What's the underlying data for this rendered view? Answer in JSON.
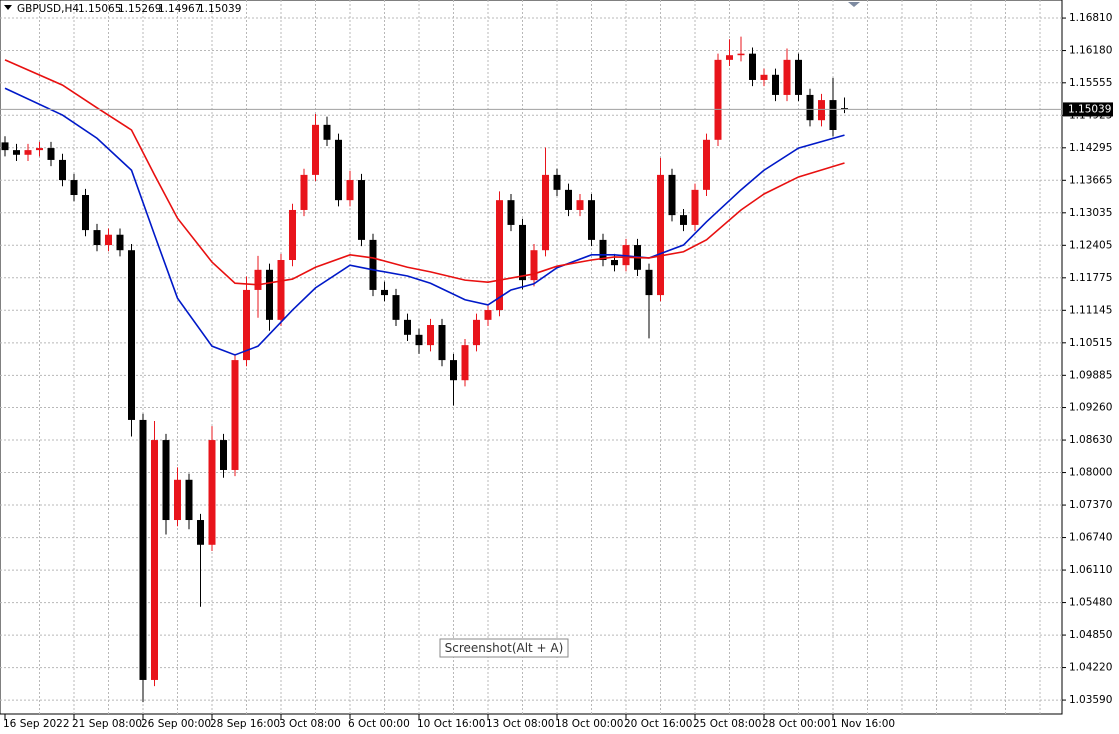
{
  "header": {
    "symbol": "GBPUSD,H4",
    "ohlc": [
      1.15065,
      1.15269,
      1.14967,
      1.15039
    ]
  },
  "tooltip": "Screenshot(Alt + A)",
  "chart_data": {
    "type": "candlestick",
    "categories": [
      "16 Sep 2022",
      null,
      null,
      null,
      null,
      null,
      "21 Sep 08:00",
      null,
      null,
      null,
      null,
      null,
      "26 Sep 00:00",
      null,
      null,
      null,
      null,
      null,
      "28 Sep 16:00",
      null,
      null,
      null,
      null,
      null,
      "3 Oct 08:00",
      null,
      null,
      null,
      null,
      null,
      "6 Oct 00:00",
      null,
      null,
      null,
      null,
      null,
      "10 Oct 16:00",
      null,
      null,
      null,
      null,
      null,
      "13 Oct 08:00",
      null,
      null,
      null,
      null,
      null,
      "18 Oct 00:00",
      null,
      null,
      null,
      null,
      null,
      "20 Oct 16:00",
      null,
      null,
      null,
      null,
      null,
      "25 Oct 08:00",
      null,
      null,
      null,
      null,
      null,
      "28 Oct 00:00",
      null,
      null,
      null,
      null,
      null,
      "1 Nov 16:00",
      null
    ],
    "open": [
      1.144,
      1.1425,
      1.1416,
      1.1425,
      1.1429,
      1.1406,
      1.1367,
      1.1338,
      1.127,
      1.1241,
      1.1261,
      1.1231,
      1.0902,
      1.0398,
      1.0863,
      1.0708,
      1.0786,
      1.0708,
      1.066,
      1.0863,
      1.0805,
      1.1018,
      1.1154,
      1.1193,
      1.1096,
      1.1212,
      1.1309,
      1.1377,
      1.1474,
      1.1445,
      1.1328,
      1.1367,
      1.1251,
      1.1154,
      1.1144,
      1.1096,
      1.1067,
      1.1047,
      1.1086,
      1.1018,
      1.0979,
      1.1047,
      1.1096,
      1.1115,
      1.1328,
      1.128,
      1.1173,
      1.1231,
      1.1377,
      1.1348,
      1.1309,
      1.1328,
      1.1251,
      1.1212,
      1.1202,
      1.1241,
      1.1193,
      1.1144,
      1.1377,
      1.1299,
      1.128,
      1.1348,
      1.1445,
      1.16,
      1.1609,
      1.1612,
      1.1561,
      1.1571,
      1.1532,
      1.16,
      1.1532,
      1.1483,
      1.1522,
      1.15065
    ],
    "high": [
      1.1452,
      1.1437,
      1.1437,
      1.1441,
      1.1441,
      1.1418,
      1.1379,
      1.135,
      1.1282,
      1.1273,
      1.1273,
      1.1243,
      1.0914,
      1.09,
      1.0875,
      1.081,
      1.0798,
      1.072,
      1.089,
      1.0875,
      1.103,
      1.118,
      1.122,
      1.1205,
      1.1224,
      1.1321,
      1.1389,
      1.1495,
      1.149,
      1.1457,
      1.1385,
      1.1379,
      1.1263,
      1.117,
      1.1156,
      1.1108,
      1.1079,
      1.1098,
      1.1098,
      1.103,
      1.1059,
      1.1108,
      1.1127,
      1.1345,
      1.134,
      1.1292,
      1.1243,
      1.143,
      1.1389,
      1.136,
      1.134,
      1.134,
      1.1263,
      1.1224,
      1.1253,
      1.1253,
      1.1205,
      1.141,
      1.1389,
      1.1311,
      1.136,
      1.1457,
      1.1612,
      1.164,
      1.1645,
      1.1624,
      1.1583,
      1.1583,
      1.1622,
      1.1612,
      1.1544,
      1.1534,
      1.1565,
      1.15269
    ],
    "low": [
      1.1413,
      1.1404,
      1.1404,
      1.1413,
      1.1394,
      1.1355,
      1.1326,
      1.1258,
      1.1229,
      1.1229,
      1.1219,
      1.087,
      1.0355,
      1.0386,
      1.068,
      1.0696,
      1.069,
      1.054,
      1.0648,
      1.079,
      1.0793,
      1.1006,
      1.11,
      1.1075,
      1.1084,
      1.12,
      1.1297,
      1.1365,
      1.1433,
      1.1316,
      1.1316,
      1.1239,
      1.1142,
      1.1132,
      1.1084,
      1.1055,
      1.103,
      1.1035,
      1.1006,
      1.093,
      1.0967,
      1.1035,
      1.1084,
      1.1103,
      1.1268,
      1.1155,
      1.1161,
      1.1219,
      1.1336,
      1.1297,
      1.1297,
      1.1239,
      1.12,
      1.119,
      1.119,
      1.1181,
      1.106,
      1.1132,
      1.1287,
      1.1268,
      1.1268,
      1.1336,
      1.1433,
      1.1588,
      1.1597,
      1.1549,
      1.1549,
      1.152,
      1.152,
      1.152,
      1.1471,
      1.1471,
      1.1452,
      1.14967
    ],
    "close": [
      1.1425,
      1.1416,
      1.1425,
      1.1429,
      1.1406,
      1.1367,
      1.1338,
      1.127,
      1.1241,
      1.1261,
      1.1231,
      1.0902,
      1.0398,
      1.0863,
      1.0708,
      1.0786,
      1.0708,
      1.066,
      1.0863,
      1.0805,
      1.1018,
      1.1154,
      1.1193,
      1.1096,
      1.1212,
      1.1309,
      1.1377,
      1.1474,
      1.1445,
      1.1328,
      1.1367,
      1.1251,
      1.1154,
      1.1144,
      1.1096,
      1.1067,
      1.1047,
      1.1086,
      1.1018,
      1.0979,
      1.1047,
      1.1096,
      1.1115,
      1.1328,
      1.128,
      1.1173,
      1.1231,
      1.1377,
      1.1348,
      1.1309,
      1.1328,
      1.1251,
      1.1212,
      1.1202,
      1.1241,
      1.1193,
      1.1144,
      1.1377,
      1.1299,
      1.128,
      1.1348,
      1.1445,
      1.16,
      1.1609,
      1.1612,
      1.1561,
      1.1571,
      1.1532,
      1.16,
      1.1532,
      1.1483,
      1.1522,
      1.1464,
      1.15039
    ],
    "up_color": "#e8141b",
    "down_color": "#000000",
    "series": [
      {
        "color": "#0019c8",
        "x": [
          0,
          5,
          8,
          11,
          13,
          15,
          18,
          20,
          22,
          25,
          27,
          30,
          32,
          35,
          37,
          40,
          42,
          44,
          46,
          48,
          51,
          53,
          56,
          59,
          61,
          64,
          66,
          69,
          73
        ],
        "values": [
          1.1545,
          1.1493,
          1.1448,
          1.1386,
          1.1261,
          1.1138,
          1.1045,
          1.1028,
          1.1045,
          1.1115,
          1.1158,
          1.1202,
          1.1193,
          1.1181,
          1.1167,
          1.1135,
          1.1125,
          1.1154,
          1.1166,
          1.1197,
          1.1222,
          1.1222,
          1.1216,
          1.1241,
          1.1286,
          1.1348,
          1.1386,
          1.1429,
          1.1454
        ]
      },
      {
        "color": "#e81010",
        "x": [
          0,
          5,
          8,
          11,
          13,
          15,
          18,
          20,
          22,
          25,
          27,
          30,
          32,
          35,
          37,
          40,
          42,
          44,
          46,
          48,
          51,
          53,
          56,
          59,
          61,
          64,
          66,
          69,
          73
        ],
        "values": [
          1.16,
          1.1551,
          1.1507,
          1.1464,
          1.1377,
          1.1293,
          1.1208,
          1.1167,
          1.1164,
          1.1175,
          1.1198,
          1.1222,
          1.1216,
          1.1198,
          1.1189,
          1.1173,
          1.1169,
          1.1177,
          1.1185,
          1.12,
          1.1212,
          1.1218,
          1.1216,
          1.1228,
          1.1251,
          1.1309,
          1.134,
          1.1373,
          1.14
        ]
      }
    ],
    "ylim": [
      1.0332,
      1.1716
    ],
    "yticks": [
      {
        "value": 1.1681,
        "label": "1.16810"
      },
      {
        "value": 1.1618,
        "label": "1.16180"
      },
      1.15555,
      1.14925,
      1.14295,
      1.13665,
      1.13035,
      1.12405,
      1.11775,
      1.11145,
      1.10515,
      1.09885,
      {
        "value": 1.0926,
        "label": "1.09260"
      },
      {
        "value": 1.0863,
        "label": "1.08630"
      },
      {
        "value": 1.08,
        "label": "1.08000"
      },
      {
        "value": 1.0737,
        "label": "1.07370"
      },
      {
        "value": 1.0674,
        "label": "1.06740"
      },
      {
        "value": 1.0611,
        "label": "1.06110"
      },
      {
        "value": 1.0548,
        "label": "1.05480"
      },
      {
        "value": 1.0485,
        "label": "1.04850"
      },
      {
        "value": 1.0422,
        "label": "1.04220"
      },
      {
        "value": 1.0359,
        "label": "1.03590"
      }
    ],
    "grid": true
  }
}
